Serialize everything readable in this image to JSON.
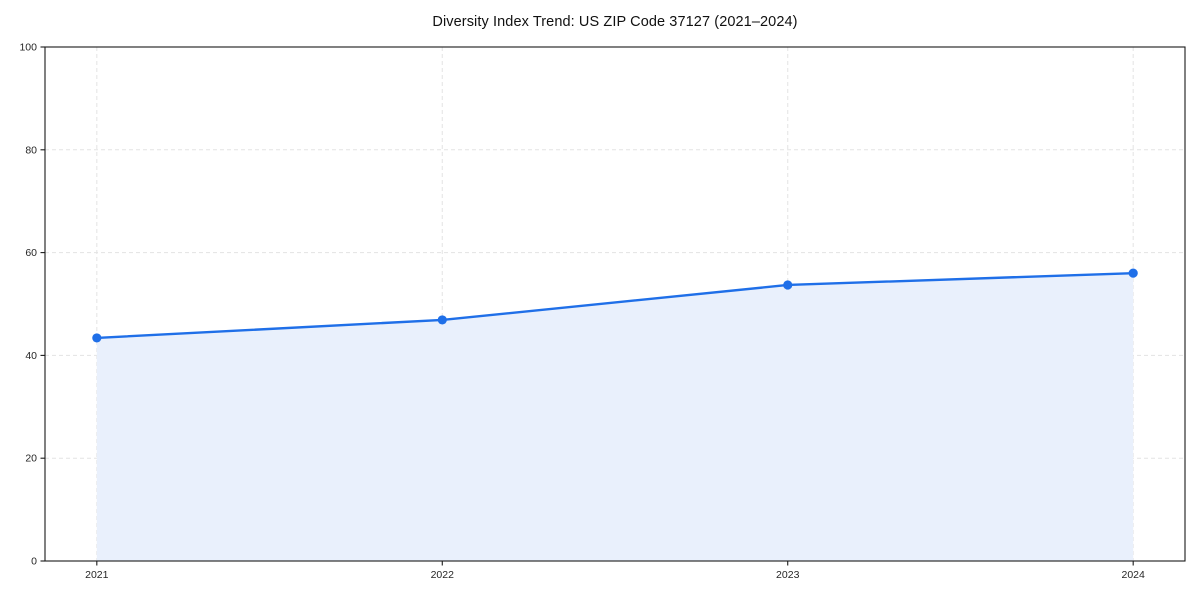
{
  "chart_data": {
    "type": "area",
    "title": "Diversity Index Trend: US ZIP Code 37127 (2021–2024)",
    "x": [
      2021,
      2022,
      2023,
      2024
    ],
    "x_tick_labels": [
      "2021",
      "2022",
      "2023",
      "2024"
    ],
    "series": [
      {
        "name": "Diversity Index",
        "values": [
          43.4,
          46.9,
          53.7,
          56.0
        ]
      }
    ],
    "xlabel": "",
    "ylabel": "",
    "ylim": [
      0,
      100
    ],
    "yticks": [
      0,
      20,
      40,
      60,
      80,
      100
    ],
    "y_tick_labels": [
      "0",
      "20",
      "40",
      "60",
      "80",
      "100"
    ],
    "grid": true,
    "grid_style": "dashed",
    "legend": "none",
    "marker": "circle",
    "colors": {
      "line": "#1f6fe8",
      "marker": "#1f6fe8",
      "area_fill": "#e9f0fc",
      "grid": "#e3e3e3",
      "spine": "#1a1a1a",
      "tick_text": "#262626",
      "title_text": "#111111",
      "background": "#ffffff"
    }
  }
}
